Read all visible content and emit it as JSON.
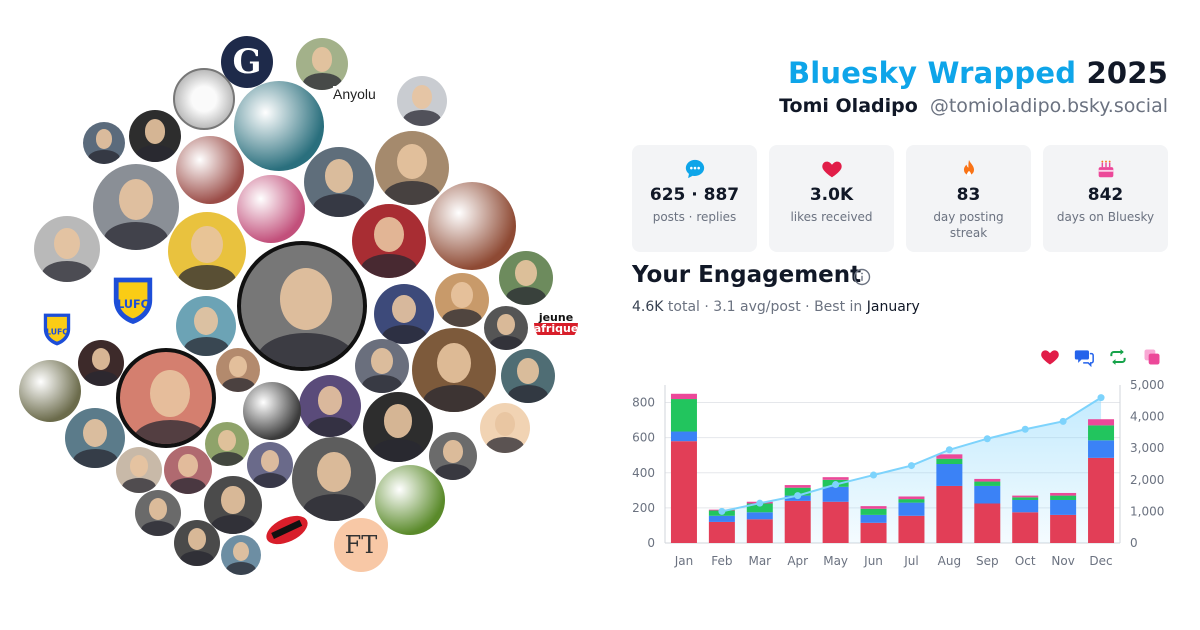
{
  "header": {
    "title_accent": "Bluesky Wrapped",
    "title_year": "2025",
    "user_name": "Tomi Oladipo",
    "handle": "@tomioladipo.bsky.social"
  },
  "stats": [
    {
      "icon": "speech-bubble-icon",
      "value": "625 · 887",
      "label": "posts · replies",
      "color": "#0ea5e9"
    },
    {
      "icon": "heart-icon",
      "value": "3.0K",
      "label": "likes received",
      "color": "#e11d48"
    },
    {
      "icon": "flame-icon",
      "value": "83",
      "label": "day posting streak",
      "color": "#f97316"
    },
    {
      "icon": "cake-icon",
      "value": "842",
      "label": "days on Bluesky",
      "color": "#ec4899"
    }
  ],
  "engagement": {
    "title": "Your Engagement",
    "total": "4.6K",
    "total_label": "total",
    "avg": "3.1 avg/post",
    "best_label": "Best in",
    "best_month": "January"
  },
  "legend_icons": [
    {
      "icon": "heart-icon",
      "color": "#e11d48"
    },
    {
      "icon": "reply-icon",
      "color": "#2563eb"
    },
    {
      "icon": "repost-icon",
      "color": "#16a34a"
    },
    {
      "icon": "quote-icon",
      "color": "#ec4899"
    }
  ],
  "collage": {
    "logo_texts": [
      "G",
      "LUFC",
      "jeune",
      "afrique",
      "FT"
    ],
    "broken_image_alt": "Anyolu"
  },
  "chart_data": {
    "type": "bar",
    "categories": [
      "Jan",
      "Feb",
      "Mar",
      "Apr",
      "May",
      "Jun",
      "Jul",
      "Aug",
      "Sep",
      "Oct",
      "Nov",
      "Dec"
    ],
    "stacked": true,
    "series": [
      {
        "values": [
          580,
          120,
          135,
          240,
          235,
          115,
          155,
          325,
          225,
          175,
          160,
          485
        ],
        "color": "#e23e57"
      },
      {
        "values": [
          55,
          35,
          40,
          30,
          85,
          45,
          75,
          125,
          100,
          70,
          85,
          100
        ],
        "color": "#3b82f6"
      },
      {
        "values": [
          185,
          30,
          50,
          45,
          40,
          35,
          20,
          30,
          25,
          15,
          25,
          85
        ],
        "color": "#22c55e"
      },
      {
        "values": [
          30,
          5,
          10,
          15,
          15,
          15,
          15,
          25,
          15,
          10,
          15,
          35
        ],
        "color": "#ec4899"
      }
    ],
    "line": {
      "values": [
        null,
        1000,
        1260,
        1500,
        1850,
        2150,
        2450,
        2950,
        3300,
        3600,
        3850,
        4600
      ],
      "color": "#7dd3fc"
    },
    "ylim_left": [
      0,
      900
    ],
    "left_ticks": [
      0,
      200,
      400,
      600,
      800
    ],
    "ylim_right": [
      0,
      5000
    ],
    "right_ticks": [
      "0",
      "1,000",
      "2,000",
      "3,000",
      "4,000",
      "5,000"
    ],
    "right_tick_values": [
      0,
      1000,
      2000,
      3000,
      4000,
      5000
    ],
    "grid": true
  }
}
